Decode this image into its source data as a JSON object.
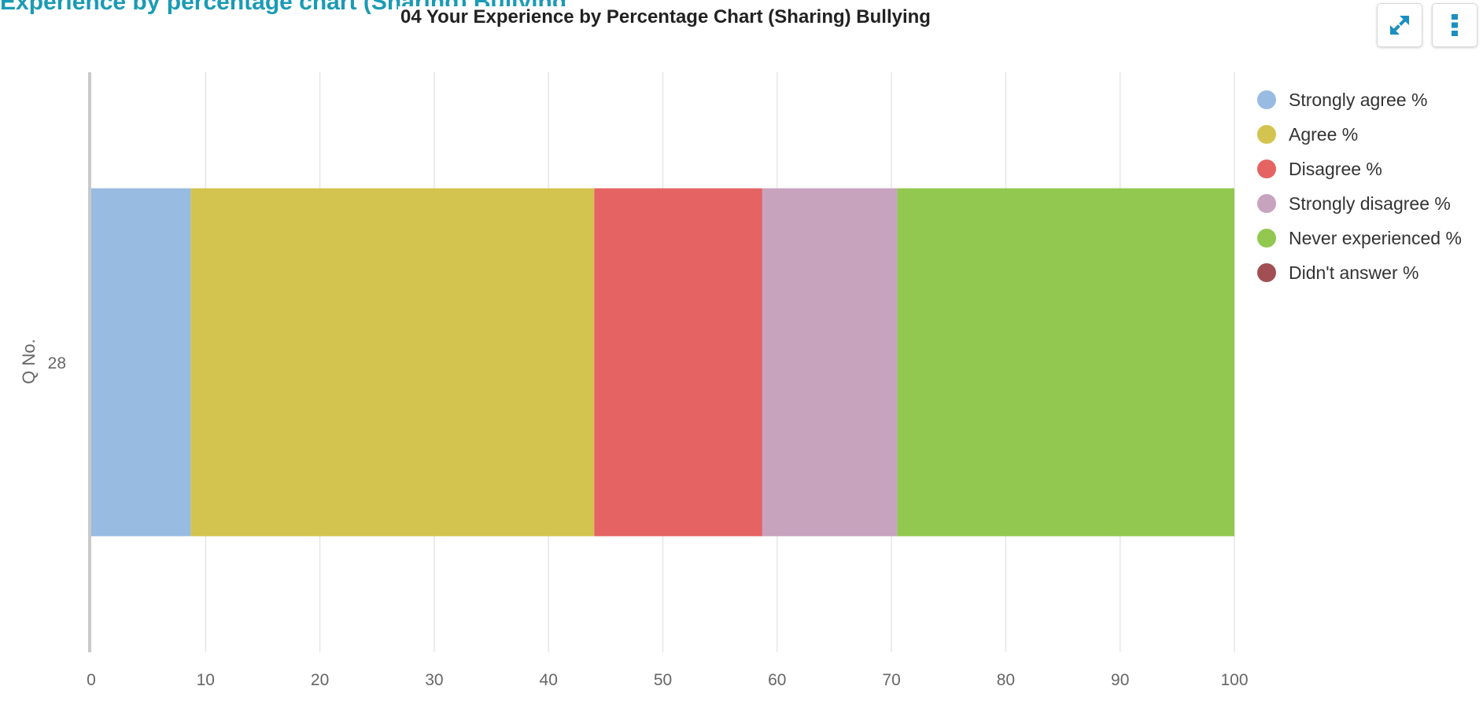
{
  "page": {
    "heading": "Experience by percentage chart (Sharing) Bullying"
  },
  "toolbar": {
    "expand_icon": "expand-arrows-icon",
    "menu_icon": "vertical-dots-icon",
    "accent": "#1a8fc0"
  },
  "chart_data": {
    "type": "bar",
    "orientation": "horizontal",
    "stacked": true,
    "title": "04 Your Experience by Percentage Chart (Sharing) Bullying",
    "xlabel": "",
    "ylabel": "Q No.",
    "categories": [
      "28"
    ],
    "xlim": [
      0,
      100
    ],
    "xticks": [
      0,
      10,
      20,
      30,
      40,
      50,
      60,
      70,
      80,
      90,
      100
    ],
    "grid": true,
    "legend_position": "right",
    "series": [
      {
        "name": "Strongly agree %",
        "color": "#98bbe2",
        "values": [
          8.7
        ]
      },
      {
        "name": "Agree %",
        "color": "#d3c44f",
        "values": [
          35.3
        ]
      },
      {
        "name": "Disagree %",
        "color": "#e56363",
        "values": [
          14.7
        ]
      },
      {
        "name": "Strongly disagree %",
        "color": "#c8a3be",
        "values": [
          11.8
        ]
      },
      {
        "name": "Never experienced %",
        "color": "#92c850",
        "values": [
          29.5
        ]
      },
      {
        "name": "Didn't answer %",
        "color": "#a14f53",
        "values": [
          0
        ]
      }
    ]
  }
}
